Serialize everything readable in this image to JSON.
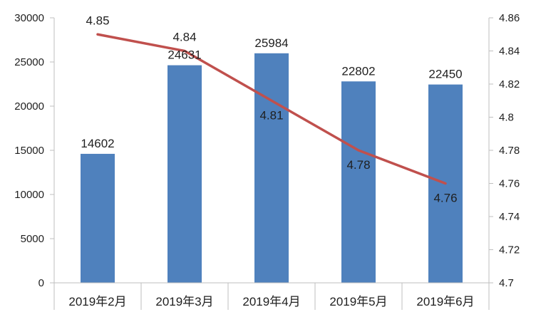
{
  "chart_data": {
    "type": "bar+line",
    "categories": [
      "2019年2月",
      "2019年3月",
      "2019年4月",
      "2019年5月",
      "2019年6月"
    ],
    "series": [
      {
        "type": "bar",
        "axis": "left",
        "values": [
          14602,
          24631,
          25984,
          22802,
          22450
        ],
        "labels": [
          "14602",
          "24631",
          "25984",
          "22802",
          "22450"
        ],
        "color": "#4F81BD"
      },
      {
        "type": "line",
        "axis": "right",
        "values": [
          4.85,
          4.84,
          4.81,
          4.78,
          4.76
        ],
        "labels": [
          "4.85",
          "4.84",
          "4.81",
          "4.78",
          "4.76"
        ],
        "color": "#C0504D"
      }
    ],
    "left_axis": {
      "ylim": [
        0,
        30000
      ],
      "ticks": [
        "0",
        "5000",
        "10000",
        "15000",
        "20000",
        "25000",
        "30000"
      ]
    },
    "right_axis": {
      "ylim": [
        4.7,
        4.86
      ],
      "ticks": [
        "4.7",
        "4.72",
        "4.74",
        "4.76",
        "4.78",
        "4.8",
        "4.82",
        "4.84",
        "4.86"
      ]
    },
    "grid": false,
    "legend": "none"
  }
}
